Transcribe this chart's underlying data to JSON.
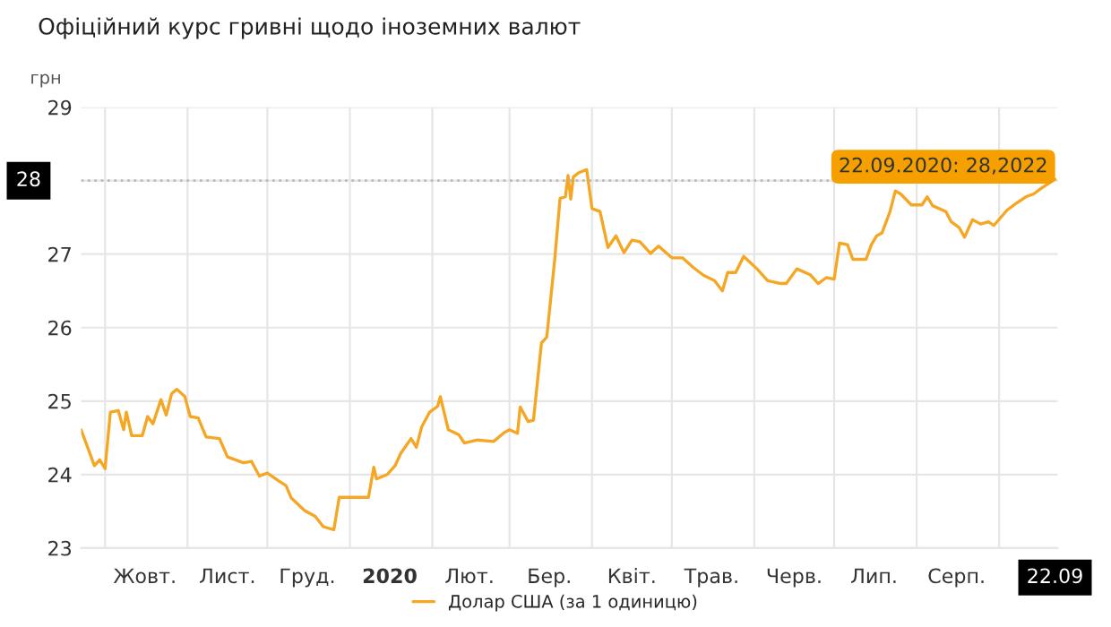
{
  "chart_data": {
    "type": "line",
    "title": "Офіційний курс гривні щодо іноземних валют",
    "ylabel": "грн",
    "series": [
      {
        "name": "Долар США (за 1 одиницю)",
        "color": "#f5a623",
        "x": [
          "2019-09-22",
          "2019-09-27",
          "2019-09-29",
          "2019-10-01",
          "2019-10-03",
          "2019-10-06",
          "2019-10-08",
          "2019-10-09",
          "2019-10-11",
          "2019-10-15",
          "2019-10-17",
          "2019-10-19",
          "2019-10-22",
          "2019-10-24",
          "2019-10-26",
          "2019-10-28",
          "2019-10-31",
          "2019-11-02",
          "2019-11-05",
          "2019-11-08",
          "2019-11-13",
          "2019-11-16",
          "2019-11-19",
          "2019-11-22",
          "2019-11-25",
          "2019-11-28",
          "2019-12-01",
          "2019-12-05",
          "2019-12-08",
          "2019-12-10",
          "2019-12-15",
          "2019-12-19",
          "2019-12-22",
          "2019-12-26",
          "2019-12-28",
          "2020-01-08",
          "2020-01-10",
          "2020-01-11",
          "2020-01-15",
          "2020-01-18",
          "2020-01-20",
          "2020-01-24",
          "2020-01-26",
          "2020-01-28",
          "2020-01-31",
          "2020-02-03",
          "2020-02-04",
          "2020-02-07",
          "2020-02-11",
          "2020-02-13",
          "2020-02-18",
          "2020-02-24",
          "2020-02-28",
          "2020-03-01",
          "2020-03-04",
          "2020-03-05",
          "2020-03-08",
          "2020-03-10",
          "2020-03-13",
          "2020-03-15",
          "2020-03-18",
          "2020-03-20",
          "2020-03-22",
          "2020-03-23",
          "2020-03-24",
          "2020-03-25",
          "2020-03-27",
          "2020-03-30",
          "2020-04-01",
          "2020-04-04",
          "2020-04-07",
          "2020-04-10",
          "2020-04-13",
          "2020-04-16",
          "2020-04-19",
          "2020-04-23",
          "2020-04-26",
          "2020-05-01",
          "2020-05-05",
          "2020-05-09",
          "2020-05-13",
          "2020-05-17",
          "2020-05-20",
          "2020-05-22",
          "2020-05-25",
          "2020-05-28",
          "2020-06-02",
          "2020-06-06",
          "2020-06-11",
          "2020-06-13",
          "2020-06-17",
          "2020-06-22",
          "2020-06-25",
          "2020-06-28",
          "2020-07-01",
          "2020-07-03",
          "2020-07-06",
          "2020-07-08",
          "2020-07-13",
          "2020-07-15",
          "2020-07-17",
          "2020-07-19",
          "2020-07-22",
          "2020-07-24",
          "2020-07-26",
          "2020-07-30",
          "2020-08-03",
          "2020-08-05",
          "2020-08-07",
          "2020-08-12",
          "2020-08-14",
          "2020-08-17",
          "2020-08-19",
          "2020-08-22",
          "2020-08-25",
          "2020-08-28",
          "2020-08-30",
          "2020-09-04",
          "2020-09-07",
          "2020-09-11",
          "2020-09-14",
          "2020-09-17",
          "2020-09-22"
        ],
        "values": [
          24.61,
          24.12,
          24.2,
          24.08,
          24.85,
          24.87,
          24.61,
          24.85,
          24.53,
          24.53,
          24.79,
          24.69,
          25.02,
          24.81,
          25.1,
          25.16,
          25.06,
          24.79,
          24.77,
          24.51,
          24.49,
          24.24,
          24.2,
          24.16,
          24.18,
          23.98,
          24.02,
          23.92,
          23.85,
          23.68,
          23.51,
          23.43,
          23.29,
          23.25,
          23.69,
          23.69,
          24.1,
          23.94,
          24.0,
          24.12,
          24.28,
          24.49,
          24.37,
          24.65,
          24.85,
          24.93,
          25.06,
          24.61,
          24.54,
          24.43,
          24.47,
          24.45,
          24.57,
          24.61,
          24.56,
          24.92,
          24.72,
          24.74,
          25.79,
          25.87,
          26.93,
          27.76,
          27.78,
          28.07,
          27.75,
          28.05,
          28.11,
          28.15,
          27.62,
          27.58,
          27.09,
          27.25,
          27.02,
          27.19,
          27.17,
          27.01,
          27.11,
          26.95,
          26.95,
          26.82,
          26.71,
          26.64,
          26.5,
          26.75,
          26.75,
          26.97,
          26.8,
          26.64,
          26.6,
          26.6,
          26.8,
          26.72,
          26.6,
          26.68,
          26.66,
          27.15,
          27.13,
          26.93,
          26.93,
          27.13,
          27.25,
          27.29,
          27.58,
          27.86,
          27.82,
          27.67,
          27.67,
          27.78,
          27.66,
          27.58,
          27.44,
          27.36,
          27.23,
          27.47,
          27.41,
          27.44,
          27.39,
          27.6,
          27.68,
          27.78,
          27.82,
          27.9,
          28.02
        ]
      }
    ],
    "xlim": [
      "2019-09-22",
      "2020-09-23"
    ],
    "xticks": [
      {
        "value": "2019-10-01",
        "label": null
      },
      {
        "value": "2019-10-16",
        "label": "Жовт."
      },
      {
        "value": "2019-11-01",
        "label": null
      },
      {
        "value": "2019-11-16",
        "label": "Лист."
      },
      {
        "value": "2019-12-01",
        "label": null
      },
      {
        "value": "2019-12-16",
        "label": "Груд."
      },
      {
        "value": "2020-01-01",
        "label": null
      },
      {
        "value": "2020-01-16",
        "label": "2020"
      },
      {
        "value": "2020-02-01",
        "label": null
      },
      {
        "value": "2020-02-15",
        "label": "Лют."
      },
      {
        "value": "2020-03-01",
        "label": null
      },
      {
        "value": "2020-03-16",
        "label": "Бер."
      },
      {
        "value": "2020-04-01",
        "label": null
      },
      {
        "value": "2020-04-16",
        "label": "Квіт."
      },
      {
        "value": "2020-05-01",
        "label": null
      },
      {
        "value": "2020-05-16",
        "label": "Трав."
      },
      {
        "value": "2020-06-01",
        "label": null
      },
      {
        "value": "2020-06-16",
        "label": "Черв."
      },
      {
        "value": "2020-07-01",
        "label": null
      },
      {
        "value": "2020-07-16",
        "label": "Лип."
      },
      {
        "value": "2020-08-01",
        "label": null
      },
      {
        "value": "2020-08-16",
        "label": "Серп."
      },
      {
        "value": "2020-09-01",
        "label": null
      },
      {
        "value": "2020-09-22",
        "label": "22.09"
      }
    ],
    "ylim": [
      23,
      29
    ],
    "yticks": [
      23,
      24,
      25,
      26,
      27,
      {
        "value": 28,
        "label": null
      },
      29
    ],
    "ref_lines": [
      {
        "axis": "y",
        "value": 28,
        "label": "28",
        "line_style": "dotted",
        "color": "#bbbbbb"
      }
    ],
    "annotations": [
      "22.09.2020: 28,2022"
    ],
    "grid": true,
    "legend": "bottom",
    "marker": "none",
    "line_style": "solid"
  }
}
